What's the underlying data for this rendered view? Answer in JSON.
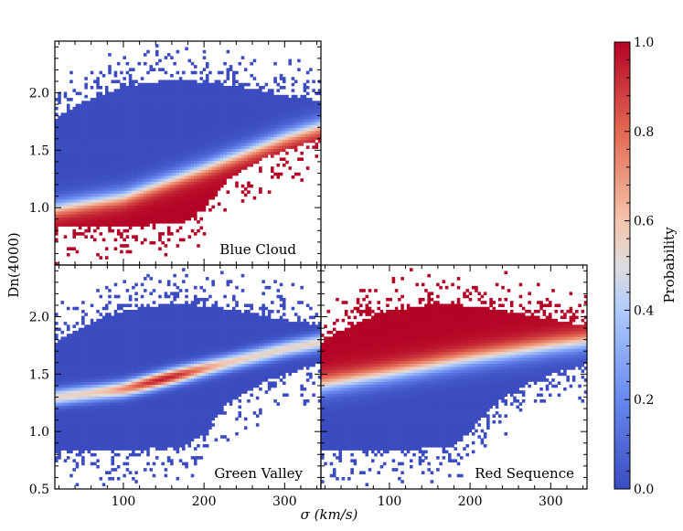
{
  "chart_data": {
    "type": "heatmap",
    "shared_axes": {
      "xlabel": "σ (km/s)",
      "ylabel": "Dn(4000)",
      "xlim": [
        15,
        345
      ],
      "ylim": [
        0.5,
        2.45
      ],
      "xticks": [
        100,
        200,
        300
      ],
      "xtick_labels": [
        "100",
        "200",
        "300"
      ],
      "yticks": [
        0.5,
        1.0,
        1.5,
        2.0
      ],
      "ytick_labels": [
        "0.5",
        "1.0",
        "1.5",
        "2.0"
      ]
    },
    "panels": [
      {
        "id": "blue-cloud",
        "label": "Blue Cloud",
        "ridge": {
          "sigma": [
            15,
            100,
            200,
            300,
            345
          ],
          "dn4000": [
            1.0,
            1.1,
            1.35,
            1.62,
            1.72
          ]
        },
        "below_ridge_probability": 1.0,
        "above_ridge_probability": 0.0
      },
      {
        "id": "green-valley",
        "label": "Green Valley",
        "ridge": {
          "sigma": [
            15,
            100,
            150,
            200,
            300,
            345
          ],
          "dn4000": [
            1.3,
            1.37,
            1.46,
            1.55,
            1.72,
            1.78
          ]
        },
        "ridge_peak_probability": 0.95,
        "away_from_ridge_probability": 0.0
      },
      {
        "id": "red-sequence",
        "label": "Red Sequence",
        "ridge": {
          "sigma": [
            15,
            100,
            200,
            300,
            345
          ],
          "dn4000": [
            1.4,
            1.5,
            1.63,
            1.74,
            1.78
          ]
        },
        "above_ridge_probability": 1.0,
        "below_ridge_probability": 0.0
      }
    ],
    "colorbar": {
      "label": "Probability",
      "colormap": "coolwarm",
      "range": [
        0.0,
        1.0
      ],
      "ticks": [
        "0.0",
        "0.2",
        "0.4",
        "0.6",
        "0.8",
        "1.0"
      ],
      "color_low": "#3b4cc0",
      "color_mid": "#dddddd",
      "color_high": "#b40426"
    }
  }
}
